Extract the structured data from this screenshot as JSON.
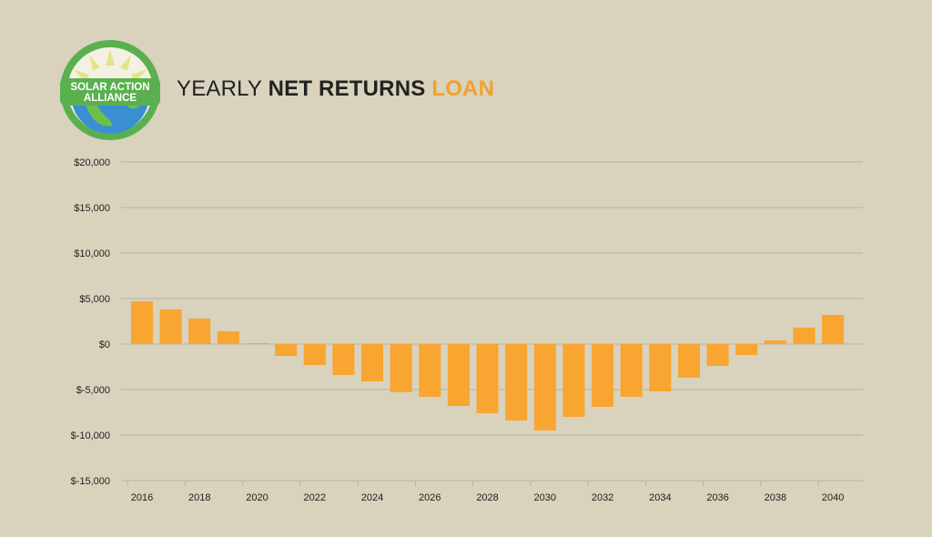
{
  "logo": {
    "line1": "SOLAR ACTION",
    "line2": "ALLIANCE"
  },
  "title": {
    "prefix": "YEARLY",
    "bold": "NET RETURNS",
    "accent": "LOAN"
  },
  "colors": {
    "background": "#d9d2bd",
    "bar": "#f8a531",
    "accent": "#f2a12e",
    "grid": "#b9b29f",
    "logo_ring": "#5ab04f"
  },
  "chart_data": {
    "type": "bar",
    "title": "YEARLY NET RETURNS LOAN",
    "xlabel": "",
    "ylabel": "",
    "ylim": [
      -15000,
      20000
    ],
    "y_ticks": [
      20000,
      15000,
      10000,
      5000,
      0,
      -5000,
      -10000,
      -15000
    ],
    "y_tick_labels": [
      "$20,000",
      "$15,000",
      "$10,000",
      "$5,000",
      "$0",
      "$-5,000",
      "$-10,000",
      "$-15,000"
    ],
    "x_tick_labels": [
      "2016",
      "2018",
      "2020",
      "2022",
      "2024",
      "2026",
      "2028",
      "2030",
      "2032",
      "2034",
      "2036",
      "2038",
      "2040"
    ],
    "categories": [
      "2016",
      "2017",
      "2018",
      "2019",
      "2020",
      "2021",
      "2022",
      "2023",
      "2024",
      "2025",
      "2026",
      "2027",
      "2028",
      "2029",
      "2030",
      "2031",
      "2032",
      "2033",
      "2034",
      "2035",
      "2036",
      "2037",
      "2038",
      "2039",
      "2040"
    ],
    "values": [
      4700,
      3800,
      2800,
      1400,
      100,
      -1300,
      -2300,
      -3400,
      -4100,
      -5300,
      -5800,
      -6800,
      -7600,
      -8400,
      -9500,
      -8000,
      -6900,
      -5800,
      -5200,
      -3700,
      -2400,
      -1200,
      400,
      1800,
      3200
    ],
    "grid": true,
    "legend": "none"
  }
}
